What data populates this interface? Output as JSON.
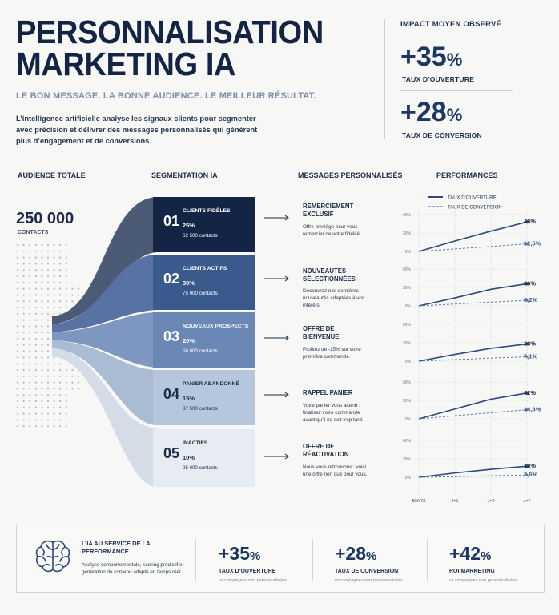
{
  "header": {
    "title_line1": "PERSONNALISATION",
    "title_line2": "MARKETING IA",
    "subtitle": "LE BON MESSAGE. LA BONNE AUDIENCE. LE MEILLEUR RÉSULTAT.",
    "description": "L’intelligence artificielle analyse les signaux clients pour segmenter avec précision et délivrer des messages personnalisés qui génèrent plus d’engagement et de conversions."
  },
  "impact": {
    "title": "IMPACT MOYEN OBSERVÉ",
    "items": [
      {
        "value": "+35",
        "unit": "%",
        "label": "TAUX D’OUVERTURE"
      },
      {
        "value": "+28",
        "unit": "%",
        "label": "TAUX DE CONVERSION"
      }
    ]
  },
  "columns": {
    "audience": "AUDIENCE TOTALE",
    "segmentation": "SEGMENTATION IA",
    "messages": "MESSAGES PERSONNALISÉS",
    "performance": "PERFORMANCES"
  },
  "audience": {
    "value": "250 000",
    "unit": "CONTACTS"
  },
  "segments": [
    {
      "num": "01",
      "name": "CLIENTS FIDÈLES",
      "pct": "25%",
      "count": "62 500 contacts",
      "bg": "#142445",
      "fg": "#ffffff"
    },
    {
      "num": "02",
      "name": "CLIENTS ACTIFS",
      "pct": "30%",
      "count": "75 000 contacts",
      "bg": "#3a5a8e",
      "fg": "#ffffff"
    },
    {
      "num": "03",
      "name": "NOUVEAUX PROSPECTS",
      "pct": "20%",
      "count": "50 000 contacts",
      "bg": "#6a87b5",
      "fg": "#ffffff"
    },
    {
      "num": "04",
      "name": "PANIER ABANDONNÉ",
      "pct": "15%",
      "count": "37 500 contacts",
      "bg": "#b6c6dd",
      "fg": "#1b2b48"
    },
    {
      "num": "05",
      "name": "INACTIFS",
      "pct": "10%",
      "count": "25 000 contacts",
      "bg": "#e7ecf3",
      "fg": "#1b2b48"
    }
  ],
  "messages": [
    {
      "title": "REMERCIEMENT EXCLUSIF",
      "body": "Offre privilège pour vous remercier de votre fidélité."
    },
    {
      "title": "NOUVEAUTÉS SÉLECTIONNÉES",
      "body": "Découvrez nos dernières nouveautés adaptées à vos intérêts."
    },
    {
      "title": "OFFRE DE BIENVENUE",
      "body": "Profitez de -15% sur votre première commande."
    },
    {
      "title": "RAPPEL PANIER",
      "body": "Votre panier vous attend : finalisez votre commande avant qu’il ne soit trop tard."
    },
    {
      "title": "OFFRE DE RÉACTIVATION",
      "body": "Nous vous retrouvons : voici une offre rien que pour vous."
    }
  ],
  "chart_data": {
    "type": "line",
    "legend": [
      "TAUX D’OUVERTURE",
      "TAUX DE CONVERSION"
    ],
    "legend_position": "top",
    "x": [
      "ENVOI",
      "J+1",
      "J+3",
      "J+7"
    ],
    "y_ticks": [
      "0%",
      "30%",
      "60%"
    ],
    "ylim": [
      0,
      60
    ],
    "colors": {
      "ouverture": "#2b4a7e",
      "conversion": "#5a78a8"
    },
    "panels": [
      {
        "segment": "01",
        "ouverture": [
          0,
          17,
          33,
          48
        ],
        "conversion": [
          0,
          4,
          8,
          12.5
        ],
        "label_ouverture": "48%",
        "label_conversion": "12,5%"
      },
      {
        "segment": "02",
        "ouverture": [
          0,
          13,
          27,
          36
        ],
        "conversion": [
          0,
          3,
          6,
          9.2
        ],
        "label_ouverture": "36%",
        "label_conversion": "9,2%"
      },
      {
        "segment": "03",
        "ouverture": [
          0,
          11,
          21,
          28
        ],
        "conversion": [
          0,
          2.5,
          5,
          7.1
        ],
        "label_ouverture": "28%",
        "label_conversion": "7,1%"
      },
      {
        "segment": "04",
        "ouverture": [
          0,
          16,
          32,
          42
        ],
        "conversion": [
          0,
          5,
          10,
          14.8
        ],
        "label_ouverture": "42%",
        "label_conversion": "14,8%"
      },
      {
        "segment": "05",
        "ouverture": [
          0,
          7,
          13,
          18
        ],
        "conversion": [
          0,
          1,
          2.5,
          3.6
        ],
        "label_ouverture": "18%",
        "label_conversion": "3,6%"
      }
    ]
  },
  "footer": {
    "title": "L’IA AU SERVICE DE LA PERFORMANCE",
    "description": "Analyse comportementale, scoring prédictif et génération de contenu adapté en temps réel.",
    "icon": "brain-icon",
    "kpis": [
      {
        "value": "+35",
        "unit": "%",
        "label": "TAUX D’OUVERTURE",
        "sub": "vs campagnes non personnalisées"
      },
      {
        "value": "+28",
        "unit": "%",
        "label": "TAUX DE CONVERSION",
        "sub": "vs campagnes non personnalisées"
      },
      {
        "value": "+42",
        "unit": "%",
        "label": "ROI MARKETING",
        "sub": "vs campagnes non personnalisées"
      }
    ]
  }
}
